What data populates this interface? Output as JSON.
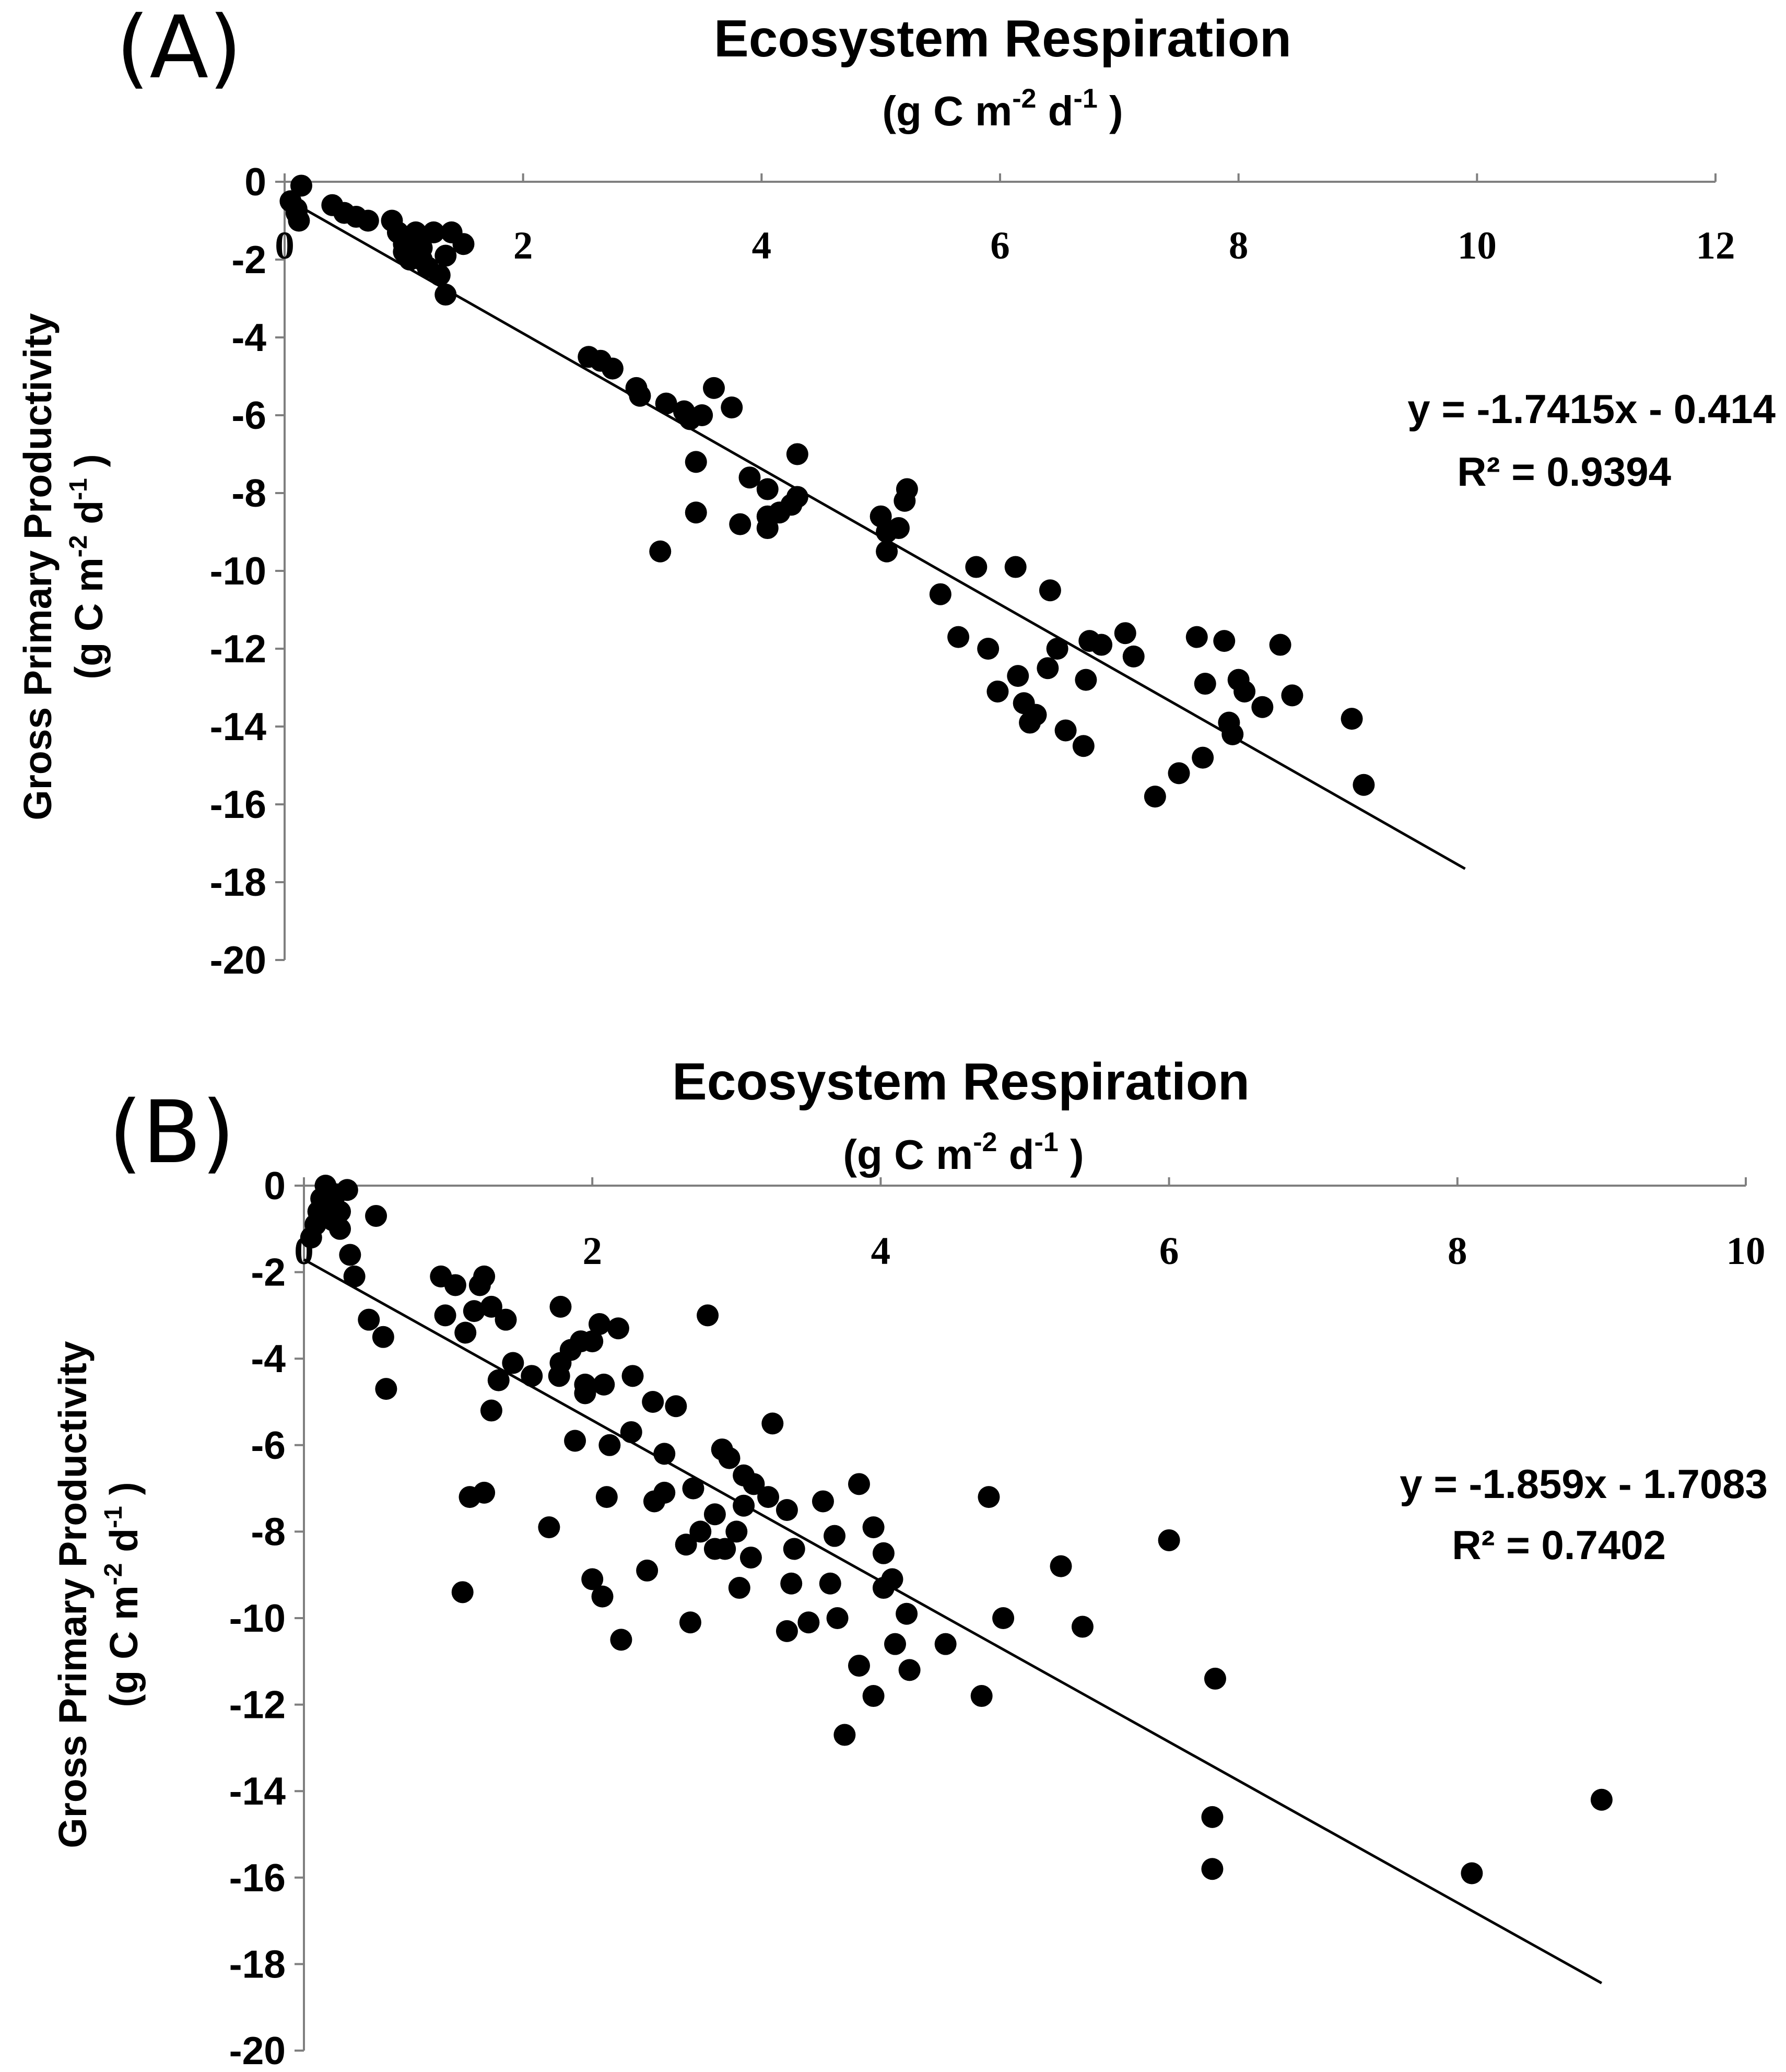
{
  "chart_data": [
    {
      "type": "scatter",
      "panel_label": "(A)",
      "title": "Ecosystem Respiration",
      "xlabel": {
        "prefix": "(g C m",
        "exp1": "-2",
        "mid": " d",
        "exp2": "-1",
        "suffix": " )"
      },
      "ylabel": {
        "line1": "Gross Primary Productivity",
        "line2_prefix": "(g C m",
        "exp1": "-2",
        "mid": " d",
        "exp2": "-1",
        "suffix": " )"
      },
      "xlim": [
        0,
        12
      ],
      "ylim": [
        -20,
        0
      ],
      "x_ticks": [
        "0",
        "2",
        "4",
        "6",
        "8",
        "10",
        "12"
      ],
      "y_ticks": [
        "0",
        "-2",
        "-4",
        "-6",
        "-8",
        "-10",
        "-12",
        "-14",
        "-16",
        "-18",
        "-20"
      ],
      "trendline": {
        "slope": -1.7415,
        "intercept": -0.414,
        "x_range": [
          0,
          9.9
        ]
      },
      "equation": "y = -1.7415x - 0.414",
      "r2": "R² = 0.9394",
      "points": [
        [
          0.05,
          -0.5
        ],
        [
          0.1,
          -0.7
        ],
        [
          0.1,
          -0.8
        ],
        [
          0.12,
          -1.0
        ],
        [
          0.14,
          -0.1
        ],
        [
          0.4,
          -0.6
        ],
        [
          0.5,
          -0.8
        ],
        [
          0.6,
          -0.9
        ],
        [
          0.7,
          -1.0
        ],
        [
          0.9,
          -1.0
        ],
        [
          0.95,
          -1.3
        ],
        [
          1.0,
          -1.6
        ],
        [
          1.0,
          -1.8
        ],
        [
          1.05,
          -2.0
        ],
        [
          1.1,
          -1.3
        ],
        [
          1.15,
          -2.0
        ],
        [
          1.15,
          -1.7
        ],
        [
          1.2,
          -2.2
        ],
        [
          1.25,
          -1.3
        ],
        [
          1.3,
          -2.4
        ],
        [
          1.35,
          -2.9
        ],
        [
          1.35,
          -1.9
        ],
        [
          1.4,
          -1.3
        ],
        [
          1.5,
          -1.6
        ],
        [
          2.55,
          -4.5
        ],
        [
          2.65,
          -4.6
        ],
        [
          2.75,
          -4.8
        ],
        [
          2.95,
          -5.3
        ],
        [
          2.98,
          -5.5
        ],
        [
          3.2,
          -5.7
        ],
        [
          3.15,
          -9.5
        ],
        [
          3.35,
          -5.9
        ],
        [
          3.4,
          -6.1
        ],
        [
          3.45,
          -7.2
        ],
        [
          3.45,
          -8.5
        ],
        [
          3.5,
          -6.0
        ],
        [
          3.6,
          -5.3
        ],
        [
          3.75,
          -5.8
        ],
        [
          3.82,
          -8.8
        ],
        [
          3.9,
          -7.6
        ],
        [
          4.05,
          -8.9
        ],
        [
          4.05,
          -7.9
        ],
        [
          4.05,
          -8.6
        ],
        [
          4.15,
          -8.5
        ],
        [
          4.25,
          -8.3
        ],
        [
          4.3,
          -7.0
        ],
        [
          4.3,
          -8.1
        ],
        [
          5.0,
          -8.6
        ],
        [
          5.05,
          -9.0
        ],
        [
          5.05,
          -9.5
        ],
        [
          5.15,
          -8.9
        ],
        [
          5.2,
          -8.2
        ],
        [
          5.22,
          -7.9
        ],
        [
          5.5,
          -10.6
        ],
        [
          5.65,
          -11.7
        ],
        [
          5.8,
          -9.9
        ],
        [
          5.9,
          -12.0
        ],
        [
          5.98,
          -13.1
        ],
        [
          6.13,
          -9.9
        ],
        [
          6.15,
          -12.7
        ],
        [
          6.2,
          -13.4
        ],
        [
          6.25,
          -13.9
        ],
        [
          6.3,
          -13.7
        ],
        [
          6.4,
          -12.5
        ],
        [
          6.42,
          -10.5
        ],
        [
          6.48,
          -12.0
        ],
        [
          6.55,
          -14.1
        ],
        [
          6.7,
          -14.5
        ],
        [
          6.72,
          -12.8
        ],
        [
          6.75,
          -11.8
        ],
        [
          6.85,
          -11.9
        ],
        [
          7.05,
          -11.6
        ],
        [
          7.12,
          -12.2
        ],
        [
          7.3,
          -15.8
        ],
        [
          7.5,
          -15.2
        ],
        [
          7.65,
          -11.7
        ],
        [
          7.7,
          -14.8
        ],
        [
          7.72,
          -12.9
        ],
        [
          7.88,
          -11.8
        ],
        [
          7.92,
          -13.9
        ],
        [
          7.95,
          -14.2
        ],
        [
          8.0,
          -12.8
        ],
        [
          8.05,
          -13.1
        ],
        [
          8.2,
          -13.5
        ],
        [
          8.35,
          -11.9
        ],
        [
          8.45,
          -13.2
        ],
        [
          8.95,
          -13.8
        ],
        [
          9.05,
          -15.5
        ]
      ]
    },
    {
      "type": "scatter",
      "panel_label": "(B)",
      "title": "Ecosystem Respiration",
      "xlabel": {
        "prefix": "(g C m",
        "exp1": "-2",
        "mid": " d",
        "exp2": "-1",
        "suffix": "  )"
      },
      "ylabel": {
        "line1": "Gross Primary Productivity",
        "line2_prefix": "(g C m",
        "exp1": "-2",
        "mid": " d",
        "exp2": "-1",
        "suffix": " )"
      },
      "xlim": [
        0,
        10
      ],
      "ylim": [
        -20,
        0
      ],
      "x_ticks": [
        "0",
        "2",
        "4",
        "6",
        "8",
        "10"
      ],
      "y_ticks": [
        "0",
        "-2",
        "-4",
        "-6",
        "-8",
        "-10",
        "-12",
        "-14",
        "-16",
        "-18",
        "-20"
      ],
      "trendline": {
        "slope": -1.859,
        "intercept": -1.7083,
        "x_range": [
          0,
          9.0
        ]
      },
      "equation": "y = -1.859x - 1.7083",
      "r2": "R² = 0.7402",
      "points": [
        [
          0.05,
          -1.2
        ],
        [
          0.08,
          -0.9
        ],
        [
          0.1,
          -0.6
        ],
        [
          0.12,
          -0.3
        ],
        [
          0.15,
          0.0
        ],
        [
          0.18,
          -0.5
        ],
        [
          0.2,
          -0.8
        ],
        [
          0.22,
          -0.2
        ],
        [
          0.25,
          -1.0
        ],
        [
          0.25,
          -0.6
        ],
        [
          0.3,
          -0.1
        ],
        [
          0.32,
          -1.6
        ],
        [
          0.35,
          -2.1
        ],
        [
          0.45,
          -3.1
        ],
        [
          0.5,
          -0.7
        ],
        [
          0.55,
          -3.5
        ],
        [
          0.57,
          -4.7
        ],
        [
          0.95,
          -2.1
        ],
        [
          0.98,
          -3.0
        ],
        [
          1.05,
          -2.3
        ],
        [
          1.1,
          -9.4
        ],
        [
          1.12,
          -3.4
        ],
        [
          1.15,
          -7.2
        ],
        [
          1.18,
          -2.9
        ],
        [
          1.22,
          -2.3
        ],
        [
          1.25,
          -7.1
        ],
        [
          1.25,
          -2.1
        ],
        [
          1.3,
          -2.8
        ],
        [
          1.3,
          -5.2
        ],
        [
          1.35,
          -4.5
        ],
        [
          1.4,
          -3.1
        ],
        [
          1.45,
          -4.1
        ],
        [
          1.58,
          -4.4
        ],
        [
          1.7,
          -7.9
        ],
        [
          1.77,
          -4.4
        ],
        [
          1.78,
          -2.8
        ],
        [
          1.78,
          -4.1
        ],
        [
          1.85,
          -3.8
        ],
        [
          1.88,
          -5.9
        ],
        [
          1.92,
          -3.6
        ],
        [
          1.95,
          -4.8
        ],
        [
          1.95,
          -4.6
        ],
        [
          2.0,
          -3.6
        ],
        [
          2.0,
          -9.1
        ],
        [
          2.05,
          -3.2
        ],
        [
          2.07,
          -9.5
        ],
        [
          2.08,
          -4.6
        ],
        [
          2.1,
          -7.2
        ],
        [
          2.12,
          -6.0
        ],
        [
          2.18,
          -3.3
        ],
        [
          2.2,
          -10.5
        ],
        [
          2.27,
          -5.7
        ],
        [
          2.28,
          -4.4
        ],
        [
          2.38,
          -8.9
        ],
        [
          2.42,
          -5.0
        ],
        [
          2.43,
          -7.3
        ],
        [
          2.5,
          -7.1
        ],
        [
          2.5,
          -6.2
        ],
        [
          2.58,
          -5.1
        ],
        [
          2.65,
          -8.3
        ],
        [
          2.68,
          -10.1
        ],
        [
          2.7,
          -7.0
        ],
        [
          2.75,
          -8.0
        ],
        [
          2.8,
          -3.0
        ],
        [
          2.85,
          -8.4
        ],
        [
          2.85,
          -7.6
        ],
        [
          2.9,
          -6.1
        ],
        [
          2.92,
          -8.4
        ],
        [
          2.95,
          -6.3
        ],
        [
          3.0,
          -8.0
        ],
        [
          3.02,
          -9.3
        ],
        [
          3.05,
          -6.7
        ],
        [
          3.05,
          -7.4
        ],
        [
          3.1,
          -8.6
        ],
        [
          3.12,
          -6.9
        ],
        [
          3.22,
          -7.2
        ],
        [
          3.25,
          -5.5
        ],
        [
          3.35,
          -7.5
        ],
        [
          3.35,
          -10.3
        ],
        [
          3.38,
          -9.2
        ],
        [
          3.4,
          -8.4
        ],
        [
          3.5,
          -10.1
        ],
        [
          3.6,
          -7.3
        ],
        [
          3.65,
          -9.2
        ],
        [
          3.68,
          -8.1
        ],
        [
          3.7,
          -10.0
        ],
        [
          3.75,
          -12.7
        ],
        [
          3.85,
          -6.9
        ],
        [
          3.85,
          -11.1
        ],
        [
          3.95,
          -11.8
        ],
        [
          3.95,
          -7.9
        ],
        [
          4.02,
          -8.5
        ],
        [
          4.02,
          -9.3
        ],
        [
          4.08,
          -9.1
        ],
        [
          4.1,
          -10.6
        ],
        [
          4.18,
          -9.9
        ],
        [
          4.2,
          -11.2
        ],
        [
          4.45,
          -10.6
        ],
        [
          4.7,
          -11.8
        ],
        [
          4.75,
          -7.2
        ],
        [
          4.85,
          -10.0
        ],
        [
          5.25,
          -8.8
        ],
        [
          5.4,
          -10.2
        ],
        [
          6.0,
          -8.2
        ],
        [
          6.3,
          -14.6
        ],
        [
          6.32,
          -11.4
        ],
        [
          6.3,
          -15.8
        ],
        [
          8.1,
          -15.9
        ],
        [
          9.0,
          -14.2
        ]
      ]
    }
  ]
}
